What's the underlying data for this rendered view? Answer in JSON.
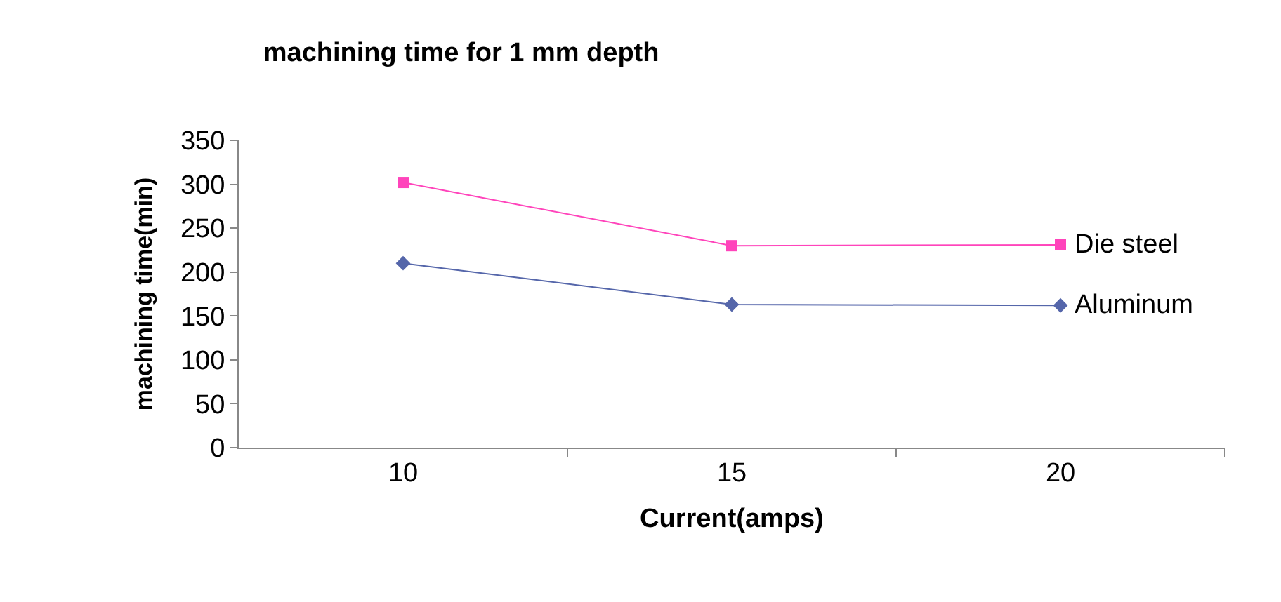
{
  "chart_data": {
    "type": "line",
    "title": "machining time for 1 mm depth",
    "xlabel": "Current(amps)",
    "ylabel": "machining time(min)",
    "categories": [
      "10",
      "15",
      "20"
    ],
    "ylim": [
      0,
      350
    ],
    "yticks": [
      0,
      50,
      100,
      150,
      200,
      250,
      300,
      350
    ],
    "series": [
      {
        "name": "Die steel",
        "color": "#ff44bb",
        "marker": "square",
        "values": [
          302,
          230,
          231
        ]
      },
      {
        "name": "Aluminum",
        "color": "#5566aa",
        "marker": "diamond",
        "values": [
          210,
          163,
          162
        ]
      }
    ]
  }
}
